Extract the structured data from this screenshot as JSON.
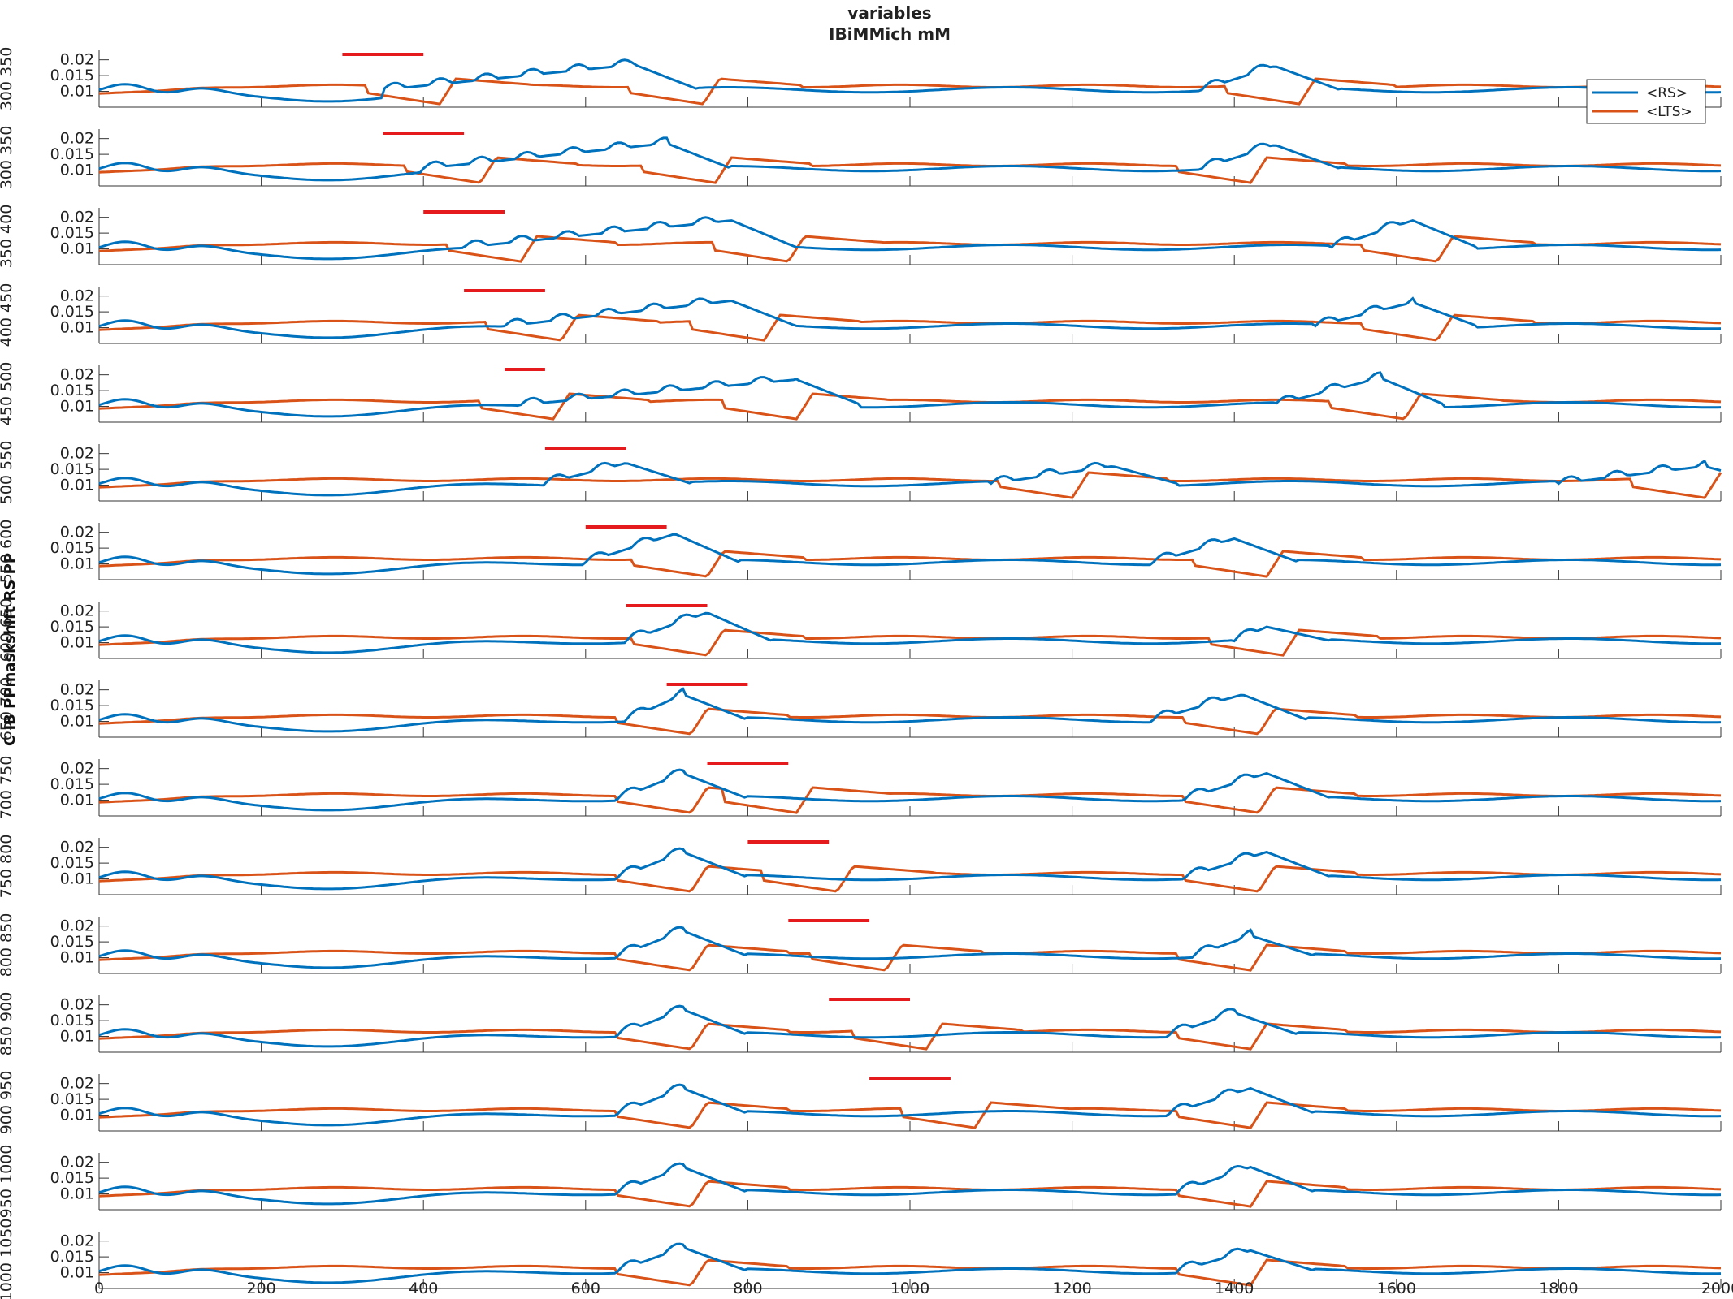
{
  "chart_data": {
    "type": "line",
    "title": "variables",
    "subtitle": "IBiMMich mM",
    "ylabel": "C IB PPmaskshift RS PP",
    "xlim": [
      0,
      2000
    ],
    "x_ticks": [
      "0",
      "200",
      "400",
      "600",
      "800",
      "1000",
      "1200",
      "1400",
      "1600",
      "1800",
      "2000"
    ],
    "ylim": [
      0.005,
      0.023
    ],
    "y_ticks": [
      "0.01",
      "0.015",
      "0.02"
    ],
    "legend": {
      "placement": "top-right",
      "entries": [
        "<RS>",
        "<LTS>"
      ]
    },
    "series_colors": {
      "RS": "#0072bd",
      "LTS": "#d95319",
      "stim": "#e41a1c"
    },
    "panel_labels": [
      "300 350",
      "300 350",
      "350 400",
      "400 450",
      "450 500",
      "500 550",
      "550 600",
      "600 650",
      "650 700",
      "700 750",
      "750 800",
      "800 850",
      "850 900",
      "900 950",
      "950 1000",
      "1000 1050"
    ],
    "panels": [
      {
        "stim": [
          300,
          400
        ],
        "rs_bursts": [
          [
            350,
            660,
            0.0185
          ],
          [
            1360,
            1450,
            0.018
          ]
        ],
        "lts_onsets": [
          420,
          745,
          1480
        ]
      },
      {
        "stim": [
          350,
          450
        ],
        "rs_bursts": [
          [
            400,
            700,
            0.0185
          ],
          [
            1360,
            1450,
            0.018
          ]
        ],
        "lts_onsets": [
          470,
          760,
          1420
        ]
      },
      {
        "stim": [
          400,
          500
        ],
        "rs_bursts": [
          [
            450,
            780,
            0.019
          ],
          [
            1520,
            1620,
            0.019
          ]
        ],
        "lts_onsets": [
          520,
          850,
          1650
        ]
      },
      {
        "stim": [
          450,
          550
        ],
        "rs_bursts": [
          [
            500,
            780,
            0.0185
          ],
          [
            1500,
            1620,
            0.018
          ]
        ],
        "lts_onsets": [
          570,
          820,
          1650
        ]
      },
      {
        "stim": [
          500,
          550
        ],
        "rs_bursts": [
          [
            520,
            860,
            0.0185
          ],
          [
            1450,
            1580,
            0.019
          ]
        ],
        "lts_onsets": [
          560,
          860,
          1610
        ]
      },
      {
        "stim": [
          550,
          650
        ],
        "rs_bursts": [
          [
            550,
            650,
            0.017
          ],
          [
            1100,
            1250,
            0.016
          ],
          [
            1800,
            1980,
            0.016
          ]
        ],
        "lts_onsets": [
          1200,
          1980
        ]
      },
      {
        "stim": [
          600,
          700
        ],
        "rs_bursts": [
          [
            600,
            710,
            0.0195
          ],
          [
            1300,
            1400,
            0.018
          ]
        ],
        "lts_onsets": [
          750,
          1440
        ]
      },
      {
        "stim": [
          650,
          750
        ],
        "rs_bursts": [
          [
            650,
            750,
            0.0195
          ],
          [
            1400,
            1440,
            0.015
          ]
        ],
        "lts_onsets": [
          750,
          1460
        ]
      },
      {
        "stim": [
          700,
          800
        ],
        "rs_bursts": [
          [
            650,
            720,
            0.0185
          ],
          [
            1300,
            1410,
            0.0185
          ]
        ],
        "lts_onsets": [
          730,
          1430
        ]
      },
      {
        "stim": [
          750,
          850
        ],
        "rs_bursts": [
          [
            640,
            720,
            0.0185
          ],
          [
            1340,
            1440,
            0.0185
          ]
        ],
        "lts_onsets": [
          730,
          860,
          1430
        ]
      },
      {
        "stim": [
          800,
          900
        ],
        "rs_bursts": [
          [
            640,
            720,
            0.0185
          ],
          [
            1340,
            1440,
            0.0185
          ]
        ],
        "lts_onsets": [
          730,
          910,
          1430
        ]
      },
      {
        "stim": [
          850,
          950
        ],
        "rs_bursts": [
          [
            640,
            720,
            0.0185
          ],
          [
            1350,
            1420,
            0.017
          ]
        ],
        "lts_onsets": [
          730,
          970,
          1420
        ]
      },
      {
        "stim": [
          900,
          1000
        ],
        "rs_bursts": [
          [
            640,
            720,
            0.0185
          ],
          [
            1320,
            1400,
            0.0175
          ]
        ],
        "lts_onsets": [
          730,
          1020,
          1420
        ]
      },
      {
        "stim": [
          950,
          1050
        ],
        "rs_bursts": [
          [
            640,
            720,
            0.0185
          ],
          [
            1320,
            1420,
            0.0185
          ]
        ],
        "lts_onsets": [
          730,
          1080,
          1420
        ]
      },
      {
        "stim": [],
        "rs_bursts": [
          [
            640,
            720,
            0.0185
          ],
          [
            1330,
            1420,
            0.0185
          ]
        ],
        "lts_onsets": [
          730,
          1420
        ]
      },
      {
        "stim": [],
        "rs_bursts": [
          [
            640,
            720,
            0.018
          ],
          [
            1330,
            1420,
            0.017
          ]
        ],
        "lts_onsets": [
          730,
          1420
        ]
      }
    ]
  }
}
